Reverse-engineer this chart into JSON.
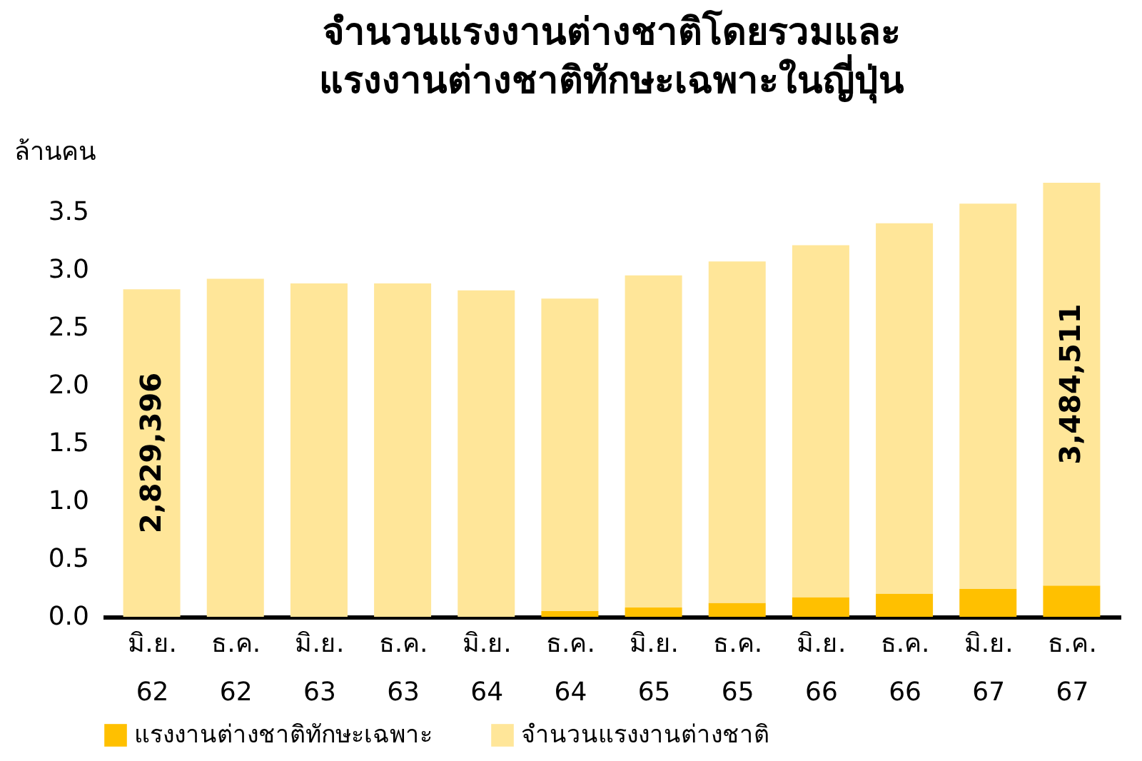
{
  "chart_data": {
    "type": "bar",
    "stacked": true,
    "title": "จำนวนแรงงานต่างชาติโดยรวมและ\nแรงงานต่างชาติทักษะเฉพาะในญี่ปุ่น",
    "ylabel": "ล้านคน",
    "categories": [
      "มิ.ย. 62",
      "ธ.ค. 62",
      "มิ.ย. 63",
      "ธ.ค. 63",
      "มิ.ย. 64",
      "ธ.ค. 64",
      "มิ.ย. 65",
      "ธ.ค. 65",
      "มิ.ย. 66",
      "ธ.ค. 66",
      "มิ.ย. 67",
      "ธ.ค. 67"
    ],
    "series": [
      {
        "name": "แรงงานต่างชาติทักษะเฉพาะ",
        "color": "#ffc000",
        "values": [
          0,
          0,
          0,
          0,
          0,
          0.05,
          0.08,
          0.12,
          0.17,
          0.2,
          0.24,
          0.27
        ]
      },
      {
        "name": "จำนวนแรงงานต่างชาติ",
        "color": "#ffe699",
        "values": [
          2.83,
          2.92,
          2.88,
          2.88,
          2.82,
          2.7,
          2.87,
          2.95,
          3.04,
          3.2,
          3.33,
          3.48
        ]
      }
    ],
    "annotations": [
      "2,829,396",
      "3,484,511"
    ],
    "ylim": [
      0,
      3.75
    ],
    "yticks": [
      {
        "value": 0,
        "label": "0.0"
      },
      {
        "value": 0.5,
        "label": "0.5"
      },
      {
        "value": 1,
        "label": "1.0"
      },
      {
        "value": 1.5,
        "label": "1.5"
      },
      {
        "value": 2,
        "label": "2.0"
      },
      {
        "value": 2.5,
        "label": "2.5"
      },
      {
        "value": 3,
        "label": "3.0"
      },
      {
        "value": 3.5,
        "label": "3.5"
      }
    ],
    "grid": false,
    "legend": "bottom"
  }
}
